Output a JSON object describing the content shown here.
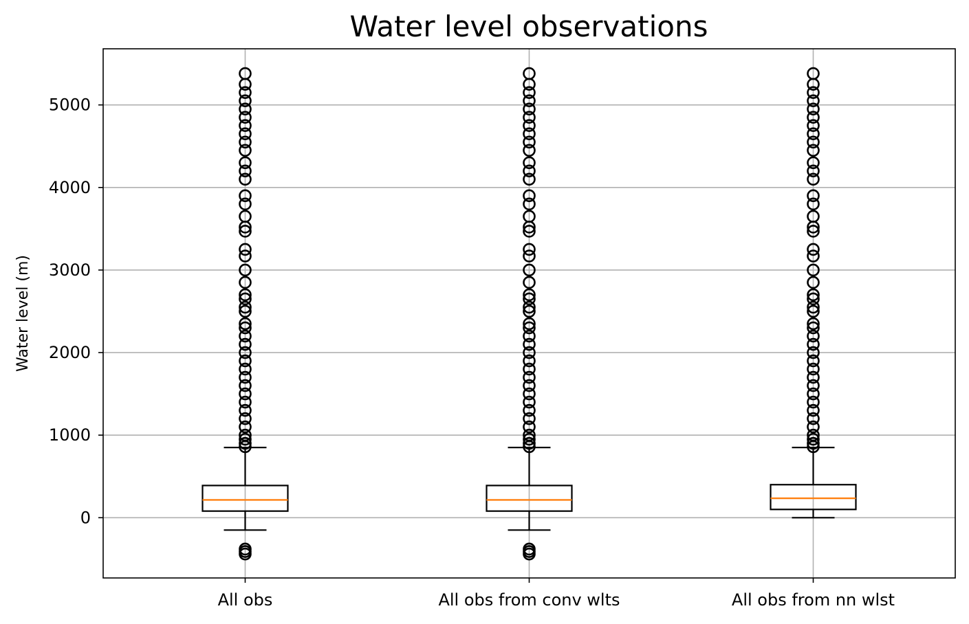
{
  "chart_data": {
    "type": "box",
    "title": "Water level observations",
    "xlabel": "",
    "ylabel": "Water level (m)",
    "ylim": [
      -730,
      5680
    ],
    "yticks": [
      0,
      1000,
      2000,
      3000,
      4000,
      5000
    ],
    "grid": true,
    "categories": [
      "All obs",
      "All obs from conv wlts",
      "All obs from nn wlst"
    ],
    "boxes": [
      {
        "category": "All obs",
        "whisker_low": -150,
        "q1": 80,
        "median": 215,
        "q3": 390,
        "whisker_high": 850,
        "outliers": [
          -440,
          -410,
          -380,
          860,
          900,
          950,
          1000,
          1100,
          1200,
          1300,
          1400,
          1500,
          1600,
          1700,
          1800,
          1900,
          2000,
          2100,
          2200,
          2300,
          2350,
          2500,
          2550,
          2650,
          2700,
          2850,
          3000,
          3170,
          3250,
          3470,
          3520,
          3650,
          3800,
          3900,
          4100,
          4200,
          4300,
          4450,
          4550,
          4650,
          4750,
          4850,
          4950,
          5050,
          5150,
          5250,
          5380
        ]
      },
      {
        "category": "All obs from conv wlts",
        "whisker_low": -150,
        "q1": 80,
        "median": 215,
        "q3": 390,
        "whisker_high": 850,
        "outliers": [
          -440,
          -410,
          -380,
          860,
          900,
          950,
          1000,
          1100,
          1200,
          1300,
          1400,
          1500,
          1600,
          1700,
          1800,
          1900,
          2000,
          2100,
          2200,
          2300,
          2350,
          2500,
          2550,
          2650,
          2700,
          2850,
          3000,
          3170,
          3250,
          3470,
          3520,
          3650,
          3800,
          3900,
          4100,
          4200,
          4300,
          4450,
          4550,
          4650,
          4750,
          4850,
          4950,
          5050,
          5150,
          5250,
          5380
        ]
      },
      {
        "category": "All obs from nn wlst",
        "whisker_low": 0,
        "q1": 100,
        "median": 235,
        "q3": 400,
        "whisker_high": 850,
        "outliers": [
          860,
          900,
          950,
          1000,
          1100,
          1200,
          1300,
          1400,
          1500,
          1600,
          1700,
          1800,
          1900,
          2000,
          2100,
          2200,
          2300,
          2350,
          2500,
          2550,
          2650,
          2700,
          2850,
          3000,
          3170,
          3250,
          3470,
          3520,
          3650,
          3800,
          3900,
          4100,
          4200,
          4300,
          4450,
          4550,
          4650,
          4750,
          4850,
          4950,
          5050,
          5150,
          5250,
          5380
        ]
      }
    ],
    "colors": {
      "median": "#ff7f0e",
      "box": "#000000",
      "grid": "#b0b0b0"
    }
  }
}
